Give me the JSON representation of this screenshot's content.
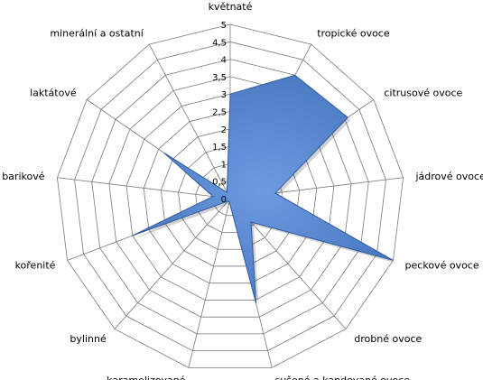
{
  "chart_data": {
    "type": "radar",
    "categories": [
      "květnaté",
      "tropické ovoce",
      "citrusové ovoce",
      "jádrové ovoce",
      "peckové ovoce",
      "drobné ovoce",
      "sušené a kandované ovoce",
      "karamelizované",
      "bylinné",
      "kořenité",
      "barikové",
      "laktátové",
      "minerální a ostatní"
    ],
    "series": [
      {
        "values": [
          3,
          4,
          4.1,
          1.3,
          5,
          0.9,
          3.1,
          0.1,
          0.1,
          3,
          0.5,
          2.3,
          0.2
        ],
        "color": "#4a7dc7"
      }
    ],
    "ylim": [
      0,
      5
    ],
    "ticks": [
      "0",
      "0,5",
      "1",
      "1,5",
      "2",
      "2,5",
      "3",
      "3,5",
      "4",
      "4,5",
      "5"
    ],
    "grid": true,
    "fill_color": "#4a7dc7",
    "stroke_color": "#2e5a9c",
    "grid_color": "#7a7a7a"
  }
}
